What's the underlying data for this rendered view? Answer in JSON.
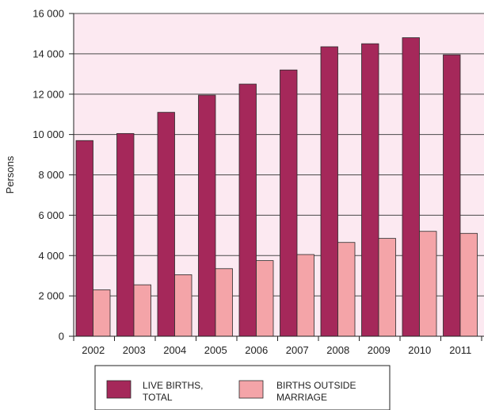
{
  "chart_data": {
    "type": "bar",
    "title": "",
    "xlabel": "",
    "ylabel": "Persons",
    "ylim": [
      0,
      16000
    ],
    "yticks": [
      0,
      2000,
      4000,
      6000,
      8000,
      10000,
      12000,
      14000,
      16000
    ],
    "ytick_labels": [
      "0",
      "2 000",
      "4 000",
      "6 000",
      "8 000",
      "10 000",
      "12 000",
      "14 000",
      "16 000"
    ],
    "grid": true,
    "legend_position": "bottom",
    "categories": [
      "2002",
      "2003",
      "2004",
      "2005",
      "2006",
      "2007",
      "2008",
      "2009",
      "2010",
      "2011"
    ],
    "series": [
      {
        "name_lines": [
          "LIVE BIRTHS,",
          "TOTAL"
        ],
        "color": "#a5285a",
        "values": [
          9700,
          10050,
          11100,
          11950,
          12500,
          13200,
          14350,
          14500,
          14800,
          13950
        ]
      },
      {
        "name_lines": [
          "BIRTHS OUTSIDE",
          "MARRIAGE"
        ],
        "color": "#f4a4a8",
        "values": [
          2300,
          2550,
          3050,
          3350,
          3750,
          4050,
          4650,
          4850,
          5200,
          5100
        ]
      }
    ],
    "plot_background": "#fce9f1"
  }
}
